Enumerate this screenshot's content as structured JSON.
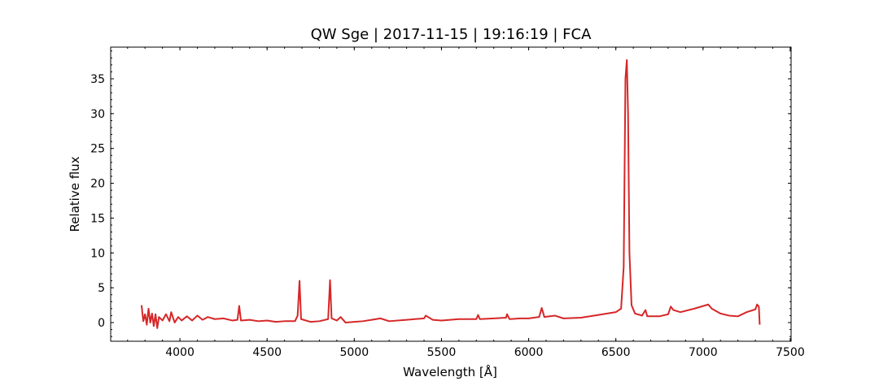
{
  "chart_data": {
    "type": "line",
    "title": "QW Sge | 2017-11-15 | 19:16:19 | FCA",
    "x_label": "Wavelength [Å]",
    "y_label": "Relative flux",
    "xlim": [
      3603,
      7505
    ],
    "ylim": [
      -2.68,
      39.55
    ],
    "xticks": [
      4000,
      4500,
      5000,
      5500,
      6000,
      6500,
      7000,
      7500
    ],
    "yticks": [
      0,
      5,
      10,
      15,
      20,
      25,
      30,
      35
    ],
    "series": [
      {
        "color": "#d62728",
        "x": [
          3780,
          3790,
          3800,
          3810,
          3820,
          3830,
          3840,
          3850,
          3860,
          3870,
          3880,
          3900,
          3920,
          3940,
          3950,
          3970,
          3990,
          4010,
          4040,
          4070,
          4100,
          4130,
          4160,
          4200,
          4250,
          4300,
          4330,
          4340,
          4350,
          4400,
          4450,
          4500,
          4550,
          4600,
          4660,
          4675,
          4686,
          4695,
          4750,
          4800,
          4850,
          4861,
          4870,
          4900,
          4922,
          4950,
          5000,
          5050,
          5100,
          5150,
          5200,
          5300,
          5400,
          5410,
          5450,
          5500,
          5600,
          5700,
          5710,
          5720,
          5800,
          5870,
          5876,
          5890,
          5950,
          6000,
          6060,
          6075,
          6090,
          6150,
          6200,
          6300,
          6400,
          6500,
          6530,
          6545,
          6555,
          6563,
          6570,
          6578,
          6590,
          6610,
          6650,
          6670,
          6680,
          6750,
          6800,
          6815,
          6830,
          6870,
          6950,
          7030,
          7050,
          7100,
          7150,
          7200,
          7250,
          7300,
          7310,
          7320,
          7325
        ],
        "values": [
          2.5,
          0.2,
          1.2,
          -0.3,
          2.0,
          0.0,
          1.3,
          -0.5,
          1.2,
          -0.8,
          0.8,
          0.3,
          1.2,
          0.2,
          1.5,
          0.0,
          0.8,
          0.3,
          0.9,
          0.3,
          1.0,
          0.4,
          0.8,
          0.5,
          0.6,
          0.3,
          0.4,
          2.4,
          0.3,
          0.4,
          0.2,
          0.3,
          0.1,
          0.2,
          0.2,
          1.0,
          6.0,
          0.5,
          0.1,
          0.2,
          0.5,
          6.1,
          0.6,
          0.3,
          0.8,
          0.0,
          0.1,
          0.2,
          0.4,
          0.6,
          0.2,
          0.4,
          0.6,
          1.0,
          0.4,
          0.3,
          0.5,
          0.5,
          1.1,
          0.5,
          0.6,
          0.7,
          1.2,
          0.5,
          0.6,
          0.6,
          0.8,
          2.1,
          0.8,
          1.0,
          0.6,
          0.7,
          1.1,
          1.5,
          2.0,
          8.0,
          35.0,
          37.7,
          30.0,
          10.0,
          2.5,
          1.3,
          1.0,
          1.8,
          0.9,
          0.9,
          1.2,
          2.3,
          1.8,
          1.5,
          2.0,
          2.6,
          2.0,
          1.3,
          1.0,
          0.9,
          1.5,
          1.9,
          2.6,
          2.3,
          -0.3
        ]
      }
    ]
  }
}
